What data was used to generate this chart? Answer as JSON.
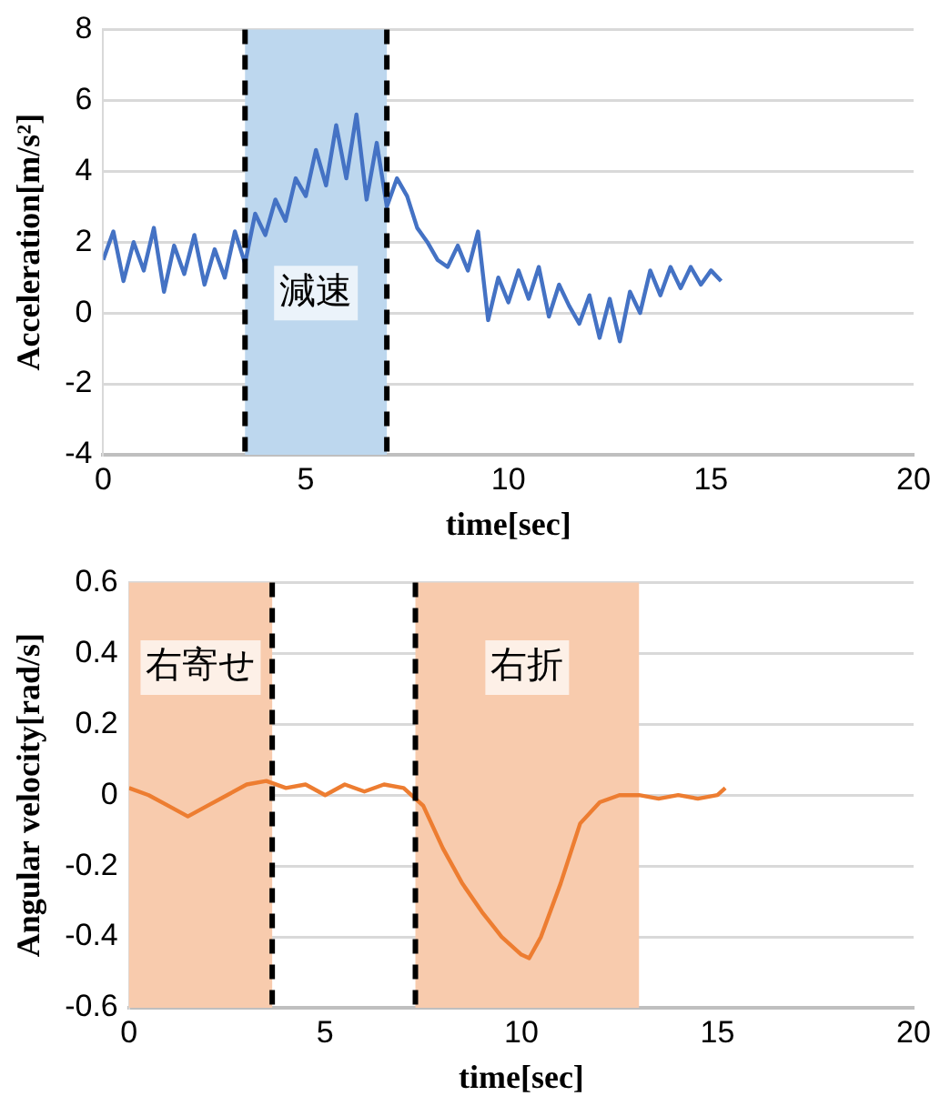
{
  "chart_data": [
    {
      "type": "line",
      "xlabel": "time[sec]",
      "ylabel": "Acceleration[m/s²]",
      "xlim": [
        0,
        20
      ],
      "xticks": [
        0,
        5,
        10,
        15,
        20
      ],
      "ylim": [
        -4,
        8
      ],
      "yticks": [
        -4,
        -2,
        0,
        2,
        4,
        6,
        8
      ],
      "grid": "y",
      "legend": false,
      "marker": "none",
      "line_style": "solid",
      "x": [
        0,
        0.25,
        0.5,
        0.75,
        1,
        1.25,
        1.5,
        1.75,
        2,
        2.25,
        2.5,
        2.75,
        3,
        3.25,
        3.5,
        3.75,
        4,
        4.25,
        4.5,
        4.75,
        5,
        5.25,
        5.5,
        5.75,
        6,
        6.25,
        6.5,
        6.75,
        7,
        7.25,
        7.5,
        7.75,
        8,
        8.25,
        8.5,
        8.75,
        9,
        9.25,
        9.5,
        9.75,
        10,
        10.25,
        10.5,
        10.75,
        11,
        11.25,
        11.5,
        11.75,
        12,
        12.25,
        12.5,
        12.75,
        13,
        13.25,
        13.5,
        13.75,
        14,
        14.25,
        14.5,
        14.75,
        15,
        15.25
      ],
      "series": [
        {
          "color": "#4472c4",
          "values": [
            1.5,
            2.3,
            0.9,
            2.0,
            1.2,
            2.4,
            0.6,
            1.9,
            1.1,
            2.2,
            0.8,
            1.8,
            1.0,
            2.3,
            1.4,
            2.8,
            2.2,
            3.2,
            2.6,
            3.8,
            3.3,
            4.6,
            3.6,
            5.3,
            3.8,
            5.6,
            3.2,
            4.8,
            3.0,
            3.8,
            3.3,
            2.4,
            2.0,
            1.5,
            1.3,
            1.9,
            1.2,
            2.3,
            -0.2,
            1.0,
            0.3,
            1.2,
            0.4,
            1.3,
            -0.1,
            0.8,
            0.2,
            -0.3,
            0.5,
            -0.7,
            0.4,
            -0.8,
            0.6,
            0.0,
            1.2,
            0.5,
            1.3,
            0.7,
            1.3,
            0.8,
            1.2,
            0.9
          ]
        }
      ],
      "bands": [
        {
          "axis": "x",
          "from": 3.5,
          "to": 7.0,
          "label": "減速",
          "color": "#bdd7ee"
        }
      ],
      "ref_lines": [
        {
          "axis": "x",
          "value": 3.5,
          "color": "#000000",
          "line_style": "dashed"
        },
        {
          "axis": "x",
          "value": 7.0,
          "color": "#000000",
          "line_style": "dashed"
        }
      ]
    },
    {
      "type": "line",
      "xlabel": "time[sec]",
      "ylabel": "Angular velocity[rad/s]",
      "xlim": [
        0,
        20
      ],
      "xticks": [
        0,
        5,
        10,
        15,
        20
      ],
      "ylim": [
        -0.6,
        0.6
      ],
      "yticks": [
        -0.6,
        -0.4,
        -0.2,
        0,
        0.2,
        0.4,
        0.6
      ],
      "grid": "y",
      "legend": false,
      "marker": "none",
      "line_style": "solid",
      "x": [
        0,
        0.5,
        1,
        1.5,
        2,
        2.5,
        3,
        3.5,
        4,
        4.5,
        5,
        5.5,
        6,
        6.5,
        7,
        7.5,
        8,
        8.5,
        9,
        9.5,
        10,
        10.2,
        10.5,
        11,
        11.5,
        12,
        12.5,
        13,
        13.5,
        14,
        14.5,
        15,
        15.2
      ],
      "series": [
        {
          "color": "#ed7d31",
          "values": [
            0.02,
            0.0,
            -0.03,
            -0.06,
            -0.03,
            0.0,
            0.03,
            0.04,
            0.02,
            0.03,
            0.0,
            0.03,
            0.01,
            0.03,
            0.02,
            -0.03,
            -0.15,
            -0.25,
            -0.33,
            -0.4,
            -0.45,
            -0.46,
            -0.4,
            -0.25,
            -0.08,
            -0.02,
            0.0,
            0.0,
            -0.01,
            0.0,
            -0.01,
            0.0,
            0.02
          ]
        }
      ],
      "bands": [
        {
          "axis": "x",
          "from": 0,
          "to": 3.65,
          "label": "右寄せ",
          "color": "#f8cbad"
        },
        {
          "axis": "x",
          "from": 7.3,
          "to": 13.0,
          "label": "右折",
          "color": "#f8cbad"
        }
      ],
      "ref_lines": [
        {
          "axis": "x",
          "value": 3.65,
          "color": "#000000",
          "line_style": "dashed"
        },
        {
          "axis": "x",
          "value": 7.3,
          "color": "#000000",
          "line_style": "dashed"
        }
      ]
    }
  ]
}
